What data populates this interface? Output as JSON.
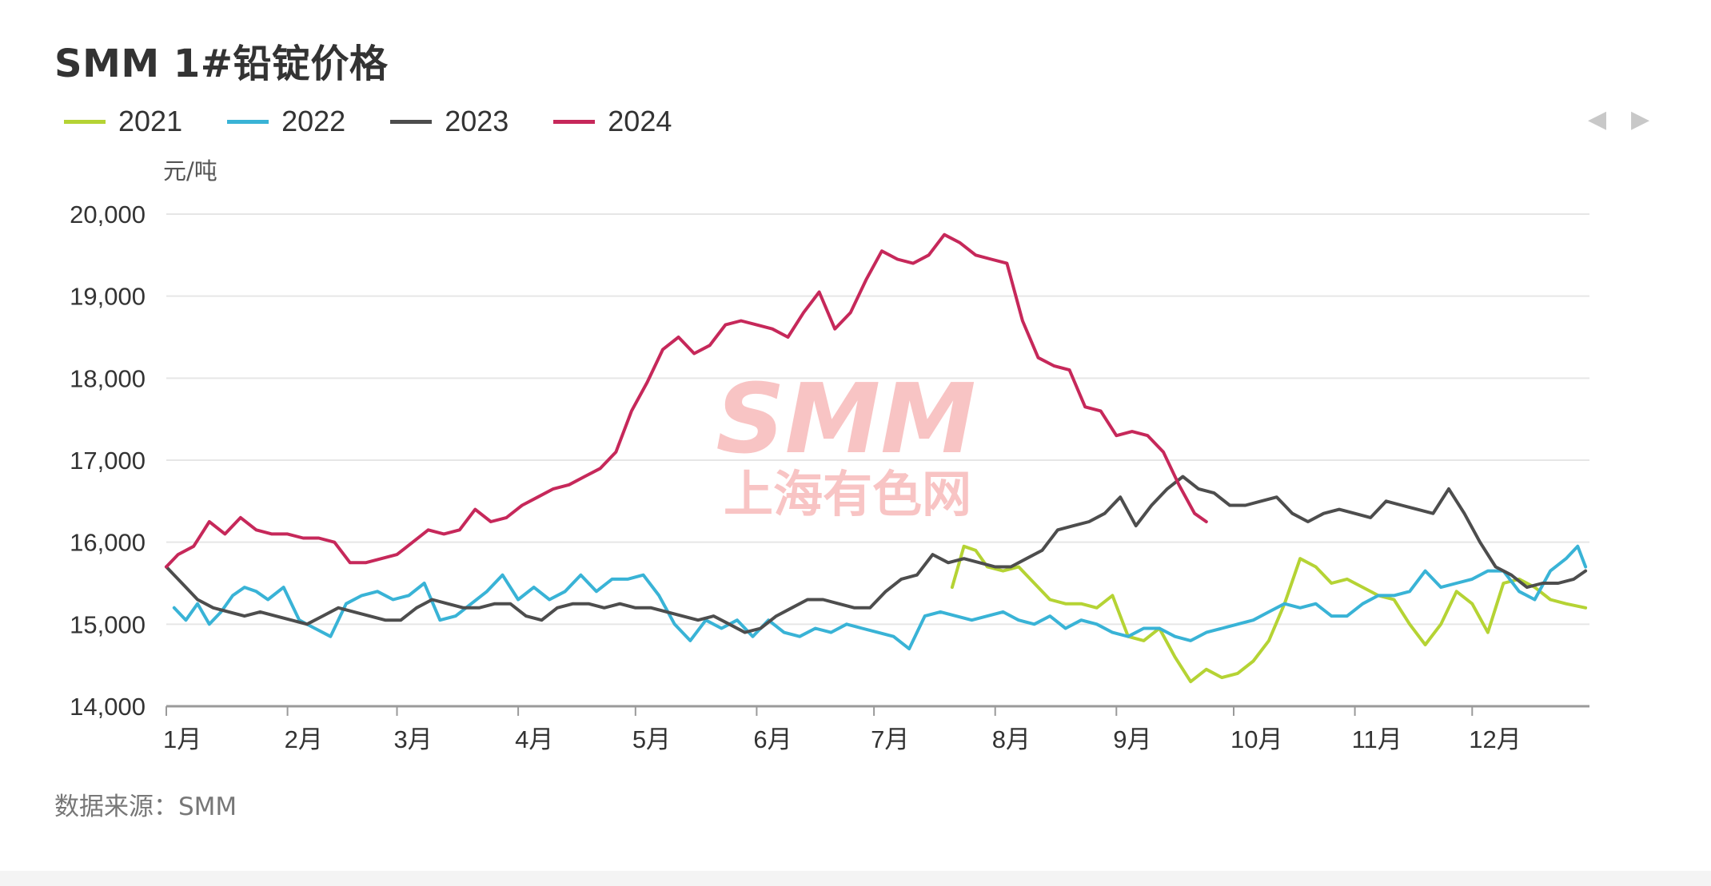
{
  "chart_data": {
    "type": "line",
    "title": "SMM 1#铅锭价格",
    "ylabel": "元/吨",
    "ylim": [
      14000,
      20000
    ],
    "yticks": [
      "20,000",
      "19,000",
      "18,000",
      "17,000",
      "16,000",
      "15,000",
      "14,000"
    ],
    "ytick_values": [
      20000,
      19000,
      18000,
      17000,
      16000,
      15000,
      14000
    ],
    "categories": [
      "1月",
      "2月",
      "3月",
      "4月",
      "5月",
      "6月",
      "7月",
      "8月",
      "9月",
      "10月",
      "11月",
      "12月"
    ],
    "x_unit": "day of year (1-365)",
    "grid": true,
    "legend_position": "top-left",
    "series": [
      {
        "name": "2021",
        "color": "#b5d334",
        "x": [
          202,
          205,
          208,
          211,
          215,
          219,
          223,
          227,
          231,
          235,
          239,
          243,
          247,
          251,
          255,
          259,
          263,
          267,
          271,
          275,
          279,
          283,
          287,
          291,
          295,
          299,
          303,
          307,
          311,
          315,
          319,
          323,
          327,
          331,
          335,
          339,
          343,
          347,
          351,
          355,
          359,
          364
        ],
        "y": [
          15450,
          15950,
          15900,
          15700,
          15650,
          15700,
          15500,
          15300,
          15250,
          15250,
          15200,
          15350,
          14850,
          14800,
          14950,
          14600,
          14300,
          14450,
          14350,
          14400,
          14550,
          14800,
          15250,
          15800,
          15700,
          15500,
          15550,
          15450,
          15350,
          15300,
          15000,
          14750,
          15000,
          15400,
          15250,
          14900,
          15500,
          15550,
          15450,
          15300,
          15250,
          15200
        ]
      },
      {
        "name": "2022",
        "color": "#39b3d6",
        "x": [
          3,
          6,
          9,
          12,
          15,
          18,
          21,
          24,
          27,
          31,
          35,
          39,
          43,
          47,
          51,
          55,
          59,
          63,
          67,
          71,
          75,
          79,
          83,
          87,
          91,
          95,
          99,
          103,
          107,
          111,
          115,
          119,
          123,
          127,
          131,
          135,
          139,
          143,
          147,
          151,
          155,
          159,
          163,
          167,
          171,
          175,
          179,
          183,
          187,
          191,
          195,
          199,
          203,
          207,
          211,
          215,
          219,
          223,
          227,
          231,
          235,
          239,
          243,
          247,
          251,
          255,
          259,
          263,
          267,
          271,
          275,
          279,
          283,
          287,
          291,
          295,
          299,
          303,
          307,
          311,
          315,
          319,
          323,
          327,
          331,
          335,
          339,
          343,
          347,
          351,
          355,
          359,
          362,
          364
        ],
        "y": [
          15200,
          15050,
          15250,
          15000,
          15150,
          15350,
          15450,
          15400,
          15300,
          15450,
          15050,
          14950,
          14850,
          15250,
          15350,
          15400,
          15300,
          15350,
          15500,
          15050,
          15100,
          15250,
          15400,
          15600,
          15300,
          15450,
          15300,
          15400,
          15600,
          15400,
          15550,
          15550,
          15600,
          15350,
          15000,
          14800,
          15050,
          14950,
          15050,
          14850,
          15050,
          14900,
          14850,
          14950,
          14900,
          15000,
          14950,
          14900,
          14850,
          14700,
          15100,
          15150,
          15100,
          15050,
          15100,
          15150,
          15050,
          15000,
          15100,
          14950,
          15050,
          15000,
          14900,
          14850,
          14950,
          14950,
          14850,
          14800,
          14900,
          14950,
          15000,
          15050,
          15150,
          15250,
          15200,
          15250,
          15100,
          15100,
          15250,
          15350,
          15350,
          15400,
          15650,
          15450,
          15500,
          15550,
          15650,
          15650,
          15400,
          15300,
          15650,
          15800,
          15950,
          15700
        ]
      },
      {
        "name": "2023",
        "color": "#4d4d4d",
        "x": [
          1,
          5,
          9,
          13,
          17,
          21,
          25,
          29,
          33,
          37,
          41,
          45,
          49,
          53,
          57,
          61,
          65,
          69,
          73,
          77,
          81,
          85,
          89,
          93,
          97,
          101,
          105,
          109,
          113,
          117,
          121,
          125,
          129,
          133,
          137,
          141,
          145,
          149,
          153,
          157,
          161,
          165,
          169,
          173,
          177,
          181,
          185,
          189,
          193,
          197,
          201,
          205,
          209,
          213,
          217,
          221,
          225,
          229,
          233,
          237,
          241,
          245,
          249,
          253,
          257,
          261,
          265,
          269,
          273,
          277,
          281,
          285,
          289,
          293,
          297,
          301,
          305,
          309,
          313,
          317,
          321,
          325,
          329,
          333,
          337,
          341,
          345,
          349,
          353,
          357,
          361,
          364
        ],
        "y": [
          15700,
          15500,
          15300,
          15200,
          15150,
          15100,
          15150,
          15100,
          15050,
          15000,
          15100,
          15200,
          15150,
          15100,
          15050,
          15050,
          15200,
          15300,
          15250,
          15200,
          15200,
          15250,
          15250,
          15100,
          15050,
          15200,
          15250,
          15250,
          15200,
          15250,
          15200,
          15200,
          15150,
          15100,
          15050,
          15100,
          15000,
          14900,
          14950,
          15100,
          15200,
          15300,
          15300,
          15250,
          15200,
          15200,
          15400,
          15550,
          15600,
          15850,
          15750,
          15800,
          15750,
          15700,
          15700,
          15800,
          15900,
          16150,
          16200,
          16250,
          16350,
          16550,
          16200,
          16450,
          16650,
          16800,
          16650,
          16600,
          16450,
          16450,
          16500,
          16550,
          16350,
          16250,
          16350,
          16400,
          16350,
          16300,
          16500,
          16450,
          16400,
          16350,
          16650,
          16350,
          16000,
          15700,
          15600,
          15450,
          15500,
          15500,
          15550,
          15650
        ]
      },
      {
        "name": "2024",
        "color": "#c6285a",
        "x": [
          1,
          4,
          8,
          12,
          16,
          20,
          24,
          28,
          32,
          36,
          40,
          44,
          48,
          52,
          56,
          60,
          64,
          68,
          72,
          76,
          80,
          84,
          88,
          92,
          96,
          100,
          104,
          108,
          112,
          116,
          120,
          124,
          128,
          132,
          136,
          140,
          144,
          148,
          152,
          156,
          160,
          164,
          168,
          172,
          176,
          180,
          184,
          188,
          192,
          196,
          200,
          204,
          208,
          212,
          216,
          220,
          224,
          228,
          232,
          236,
          240,
          244,
          248,
          252,
          256,
          260,
          264,
          267
        ],
        "y": [
          15700,
          15850,
          15950,
          16250,
          16100,
          16300,
          16150,
          16100,
          16100,
          16050,
          16050,
          16000,
          15750,
          15750,
          15800,
          15850,
          16000,
          16150,
          16100,
          16150,
          16400,
          16250,
          16300,
          16450,
          16550,
          16650,
          16700,
          16800,
          16900,
          17100,
          17600,
          17950,
          18350,
          18500,
          18300,
          18400,
          18650,
          18700,
          18650,
          18600,
          18500,
          18800,
          19050,
          18600,
          18800,
          19200,
          19550,
          19450,
          19400,
          19500,
          19750,
          19650,
          19500,
          19450,
          19400,
          18700,
          18250,
          18150,
          18100,
          17650,
          17600,
          17300,
          17350,
          17300,
          17100,
          16700,
          16350,
          16250
        ]
      }
    ]
  },
  "legend": {
    "items": [
      {
        "label": "2021",
        "color": "#b5d334"
      },
      {
        "label": "2022",
        "color": "#39b3d6"
      },
      {
        "label": "2023",
        "color": "#4d4d4d"
      },
      {
        "label": "2024",
        "color": "#c6285a"
      }
    ]
  },
  "nav": {
    "prev_icon": "◀",
    "next_icon": "▶"
  },
  "watermark": {
    "brand": "SMM",
    "name": "上海有色网"
  },
  "source": "数据来源：SMM"
}
